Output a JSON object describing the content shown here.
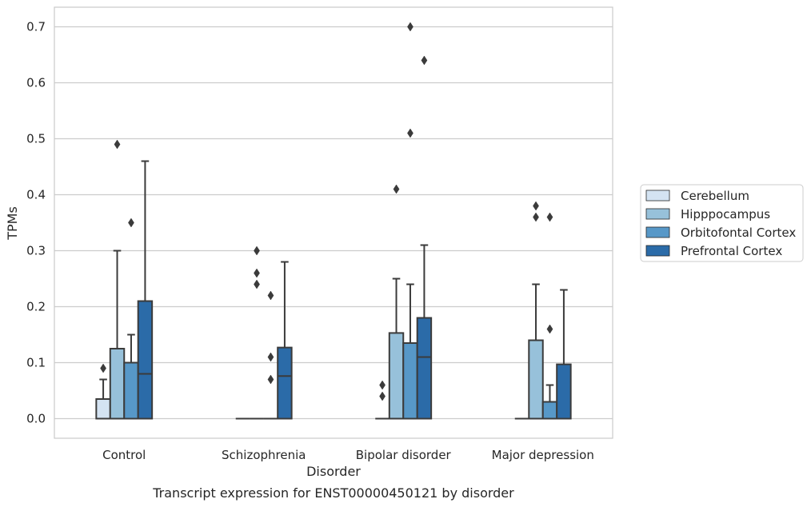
{
  "chart_data": {
    "type": "box",
    "caption": "Transcript expression for ENST00000450121 by disorder",
    "xlabel": "Disorder",
    "ylabel": "TPMs",
    "ylim": [
      -0.035,
      0.735
    ],
    "yticks": [
      0.0,
      0.1,
      0.2,
      0.3,
      0.4,
      0.5,
      0.6,
      0.7
    ],
    "ytick_labels": [
      "0.0",
      "0.1",
      "0.2",
      "0.3",
      "0.4",
      "0.5",
      "0.6",
      "0.7"
    ],
    "grid": "horizontal",
    "legend_placement": "right, outside plot",
    "categories": [
      "Control",
      "Schizophrenia",
      "Bipolar disorder",
      "Major depression"
    ],
    "series": [
      {
        "name": "Cerebellum",
        "color": "#d4e3f2",
        "boxes": [
          {
            "q1": 0.0,
            "median": 0.0,
            "q3": 0.035,
            "whisker_low": 0.0,
            "whisker_high": 0.07,
            "outliers": [
              0.09
            ]
          },
          {
            "q1": 0.0,
            "median": 0.0,
            "q3": 0.0,
            "whisker_low": 0.0,
            "whisker_high": 0.0,
            "outliers": []
          },
          {
            "q1": 0.0,
            "median": 0.0,
            "q3": 0.0,
            "whisker_low": 0.0,
            "whisker_high": 0.0,
            "outliers": [
              0.04,
              0.06
            ]
          },
          {
            "q1": 0.0,
            "median": 0.0,
            "q3": 0.0,
            "whisker_low": 0.0,
            "whisker_high": 0.0,
            "outliers": []
          }
        ]
      },
      {
        "name": "Hipppocampus",
        "color": "#97c1da",
        "boxes": [
          {
            "q1": 0.0,
            "median": 0.0,
            "q3": 0.125,
            "whisker_low": 0.0,
            "whisker_high": 0.3,
            "outliers": [
              0.49
            ]
          },
          {
            "q1": 0.0,
            "median": 0.0,
            "q3": 0.0,
            "whisker_low": 0.0,
            "whisker_high": 0.0,
            "outliers": [
              0.24,
              0.26,
              0.3
            ]
          },
          {
            "q1": 0.0,
            "median": 0.0,
            "q3": 0.153,
            "whisker_low": 0.0,
            "whisker_high": 0.25,
            "outliers": [
              0.41
            ]
          },
          {
            "q1": 0.0,
            "median": 0.0,
            "q3": 0.14,
            "whisker_low": 0.0,
            "whisker_high": 0.24,
            "outliers": [
              0.36,
              0.38
            ]
          }
        ]
      },
      {
        "name": "Orbitofontal Cortex",
        "color": "#5798c8",
        "boxes": [
          {
            "q1": 0.0,
            "median": 0.0,
            "q3": 0.1,
            "whisker_low": 0.0,
            "whisker_high": 0.15,
            "outliers": [
              0.35
            ]
          },
          {
            "q1": 0.0,
            "median": 0.0,
            "q3": 0.0,
            "whisker_low": 0.0,
            "whisker_high": 0.0,
            "outliers": [
              0.07,
              0.11,
              0.22
            ]
          },
          {
            "q1": 0.0,
            "median": 0.0,
            "q3": 0.135,
            "whisker_low": 0.0,
            "whisker_high": 0.24,
            "outliers": [
              0.51,
              0.7
            ]
          },
          {
            "q1": 0.0,
            "median": 0.0,
            "q3": 0.03,
            "whisker_low": 0.0,
            "whisker_high": 0.06,
            "outliers": [
              0.16,
              0.36
            ]
          }
        ]
      },
      {
        "name": "Prefrontal Cortex",
        "color": "#2b6ba8",
        "boxes": [
          {
            "q1": 0.0,
            "median": 0.08,
            "q3": 0.21,
            "whisker_low": 0.0,
            "whisker_high": 0.46,
            "outliers": []
          },
          {
            "q1": 0.0,
            "median": 0.076,
            "q3": 0.127,
            "whisker_low": 0.0,
            "whisker_high": 0.28,
            "outliers": []
          },
          {
            "q1": 0.0,
            "median": 0.11,
            "q3": 0.18,
            "whisker_low": 0.0,
            "whisker_high": 0.31,
            "outliers": [
              0.64
            ]
          },
          {
            "q1": 0.0,
            "median": 0.0,
            "q3": 0.097,
            "whisker_low": 0.0,
            "whisker_high": 0.23,
            "outliers": []
          }
        ]
      }
    ]
  }
}
